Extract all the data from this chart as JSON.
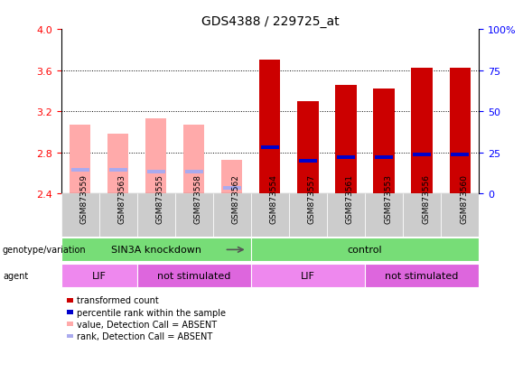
{
  "title": "GDS4388 / 229725_at",
  "samples": [
    "GSM873559",
    "GSM873563",
    "GSM873555",
    "GSM873558",
    "GSM873562",
    "GSM873554",
    "GSM873557",
    "GSM873561",
    "GSM873553",
    "GSM873556",
    "GSM873560"
  ],
  "bar_bottom": 2.4,
  "transformed_counts": [
    null,
    null,
    null,
    null,
    null,
    3.7,
    3.3,
    3.46,
    3.42,
    3.62,
    3.62
  ],
  "absent_values": [
    3.07,
    2.98,
    3.13,
    3.07,
    2.73,
    null,
    null,
    null,
    null,
    null,
    null
  ],
  "percentile_ranks": [
    null,
    null,
    null,
    null,
    null,
    28.0,
    20.0,
    22.0,
    22.0,
    24.0,
    24.0
  ],
  "absent_ranks": [
    14.5,
    14.5,
    13.5,
    13.5,
    3.5,
    null,
    null,
    null,
    null,
    null,
    null
  ],
  "ylim": [
    2.4,
    4.0
  ],
  "yticks": [
    2.4,
    2.8,
    3.2,
    3.6,
    4.0
  ],
  "right_ytick_pcts": [
    0,
    25,
    50,
    75,
    100
  ],
  "right_ytick_labels": [
    "0",
    "25",
    "50",
    "75",
    "100%"
  ],
  "bar_color_present": "#cc0000",
  "bar_color_absent": "#ffaaaa",
  "rank_color_present": "#0000cc",
  "rank_color_absent": "#aaaaee",
  "genotype_groups": [
    {
      "label": "SIN3A knockdown",
      "start": 0,
      "end": 5
    },
    {
      "label": "control",
      "start": 5,
      "end": 11
    }
  ],
  "agent_groups": [
    {
      "label": "LIF",
      "start": 0,
      "end": 2
    },
    {
      "label": "not stimulated",
      "start": 2,
      "end": 5
    },
    {
      "label": "LIF",
      "start": 5,
      "end": 8
    },
    {
      "label": "not stimulated",
      "start": 8,
      "end": 11
    }
  ],
  "legend_items": [
    {
      "label": "transformed count",
      "color": "#cc0000"
    },
    {
      "label": "percentile rank within the sample",
      "color": "#0000cc"
    },
    {
      "label": "value, Detection Call = ABSENT",
      "color": "#ffaaaa"
    },
    {
      "label": "rank, Detection Call = ABSENT",
      "color": "#aaaaee"
    }
  ],
  "genotype_color": "#77dd77",
  "agent_color_lif": "#ee88ee",
  "agent_color_notstim": "#dd66dd",
  "gray_bg": "#cccccc"
}
